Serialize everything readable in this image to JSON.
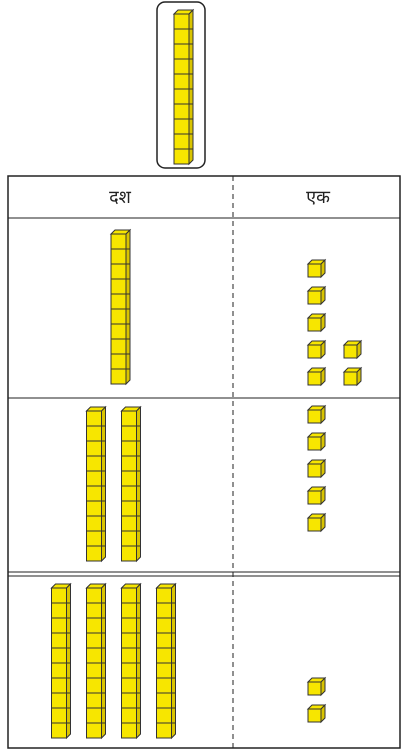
{
  "header": {
    "tens": "दश",
    "ones": "एक"
  },
  "rows": [
    {
      "tens": 1,
      "ones": 7
    },
    {
      "tens": 2,
      "ones": 5
    },
    {
      "tens": 4,
      "ones": 2
    }
  ]
}
